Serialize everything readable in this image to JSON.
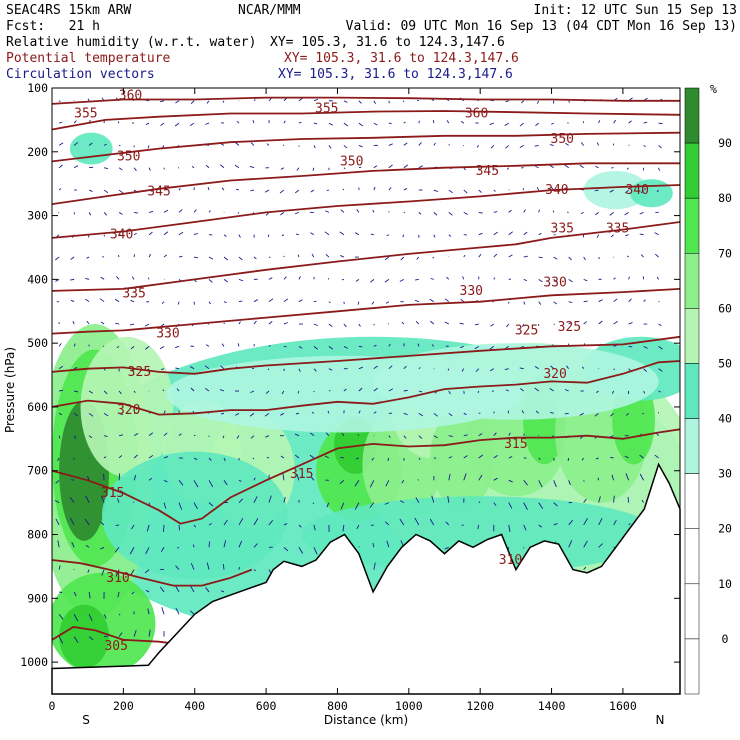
{
  "header": {
    "model": "SEAC4RS 15km ARW",
    "org": "NCAR/MMM",
    "init": "Init: 12 UTC Sun 15 Sep 13",
    "fcst": "Fcst:   21 h",
    "valid": "Valid: 09 UTC Mon 16 Sep 13 (04 CDT Mon 16 Sep 13)",
    "fields": [
      {
        "name": "Relative humidity (w.r.t. water)",
        "xy": "XY= 105.3, 31.6 to 124.3,147.6",
        "color": "#000000"
      },
      {
        "name": "Potential temperature",
        "xy": "XY= 105.3, 31.6 to 124.3,147.6",
        "color": "#8b1a1a"
      },
      {
        "name": "Circulation vectors",
        "xy": "XY= 105.3, 31.6 to 124.3,147.6",
        "color": "#1a1a8b"
      }
    ]
  },
  "chart_data": {
    "type": "heatmap",
    "xlabel": "Distance (km)",
    "ylabel": "Pressure (hPa)",
    "xlim": [
      0,
      1760
    ],
    "ylim": [
      1050,
      100
    ],
    "x_ticks": [
      0,
      200,
      400,
      600,
      800,
      1000,
      1200,
      1400,
      1600
    ],
    "y_ticks": [
      100,
      200,
      300,
      400,
      500,
      600,
      700,
      800,
      900,
      1000
    ],
    "x_end_labels": {
      "left": "S",
      "right": "N"
    },
    "colorbar": {
      "unit": "%",
      "ticks": [
        90,
        80,
        70,
        60,
        50,
        40,
        30,
        20,
        10,
        0
      ],
      "bands": [
        {
          "range": [
            90,
            100
          ],
          "color": "#2e8b2e"
        },
        {
          "range": [
            80,
            90
          ],
          "color": "#32cd32"
        },
        {
          "range": [
            70,
            80
          ],
          "color": "#50e650"
        },
        {
          "range": [
            60,
            70
          ],
          "color": "#8cef8c"
        },
        {
          "range": [
            50,
            60
          ],
          "color": "#b4f5b4"
        },
        {
          "range": [
            40,
            50
          ],
          "color": "#5fe8be"
        },
        {
          "range": [
            30,
            40
          ],
          "color": "#aef5e0"
        },
        {
          "range": [
            20,
            30
          ],
          "color": "#ffffff"
        },
        {
          "range": [
            10,
            20
          ],
          "color": "#ffffff"
        },
        {
          "range": [
            0,
            10
          ],
          "color": "#ffffff"
        },
        {
          "range": [
            -10,
            0
          ],
          "color": "#ffffff"
        }
      ]
    },
    "theta_contours": [
      {
        "label": "305",
        "points": [
          [
            0,
            965
          ],
          [
            60,
            945
          ],
          [
            120,
            950
          ],
          [
            200,
            965
          ],
          [
            300,
            968
          ],
          [
            400,
            975
          ]
        ]
      },
      {
        "label": "310",
        "points": [
          [
            0,
            840
          ],
          [
            80,
            845
          ],
          [
            160,
            855
          ],
          [
            250,
            868
          ],
          [
            340,
            880
          ],
          [
            420,
            880
          ],
          [
            500,
            868
          ],
          [
            560,
            855
          ]
        ]
      },
      {
        "label": "315",
        "points": [
          [
            0,
            700
          ],
          [
            100,
            715
          ],
          [
            200,
            735
          ],
          [
            300,
            762
          ],
          [
            360,
            783
          ],
          [
            420,
            775
          ],
          [
            500,
            742
          ],
          [
            600,
            715
          ],
          [
            700,
            690
          ],
          [
            800,
            665
          ],
          [
            900,
            658
          ],
          [
            1000,
            662
          ],
          [
            1100,
            660
          ],
          [
            1200,
            652
          ],
          [
            1300,
            648
          ],
          [
            1400,
            648
          ],
          [
            1500,
            645
          ],
          [
            1600,
            650
          ],
          [
            1700,
            640
          ],
          [
            1760,
            635
          ]
        ]
      },
      {
        "label": "320",
        "points": [
          [
            0,
            600
          ],
          [
            100,
            590
          ],
          [
            200,
            595
          ],
          [
            300,
            612
          ],
          [
            400,
            610
          ],
          [
            500,
            605
          ],
          [
            600,
            605
          ],
          [
            700,
            598
          ],
          [
            800,
            592
          ],
          [
            900,
            595
          ],
          [
            1000,
            585
          ],
          [
            1100,
            572
          ],
          [
            1200,
            568
          ],
          [
            1300,
            565
          ],
          [
            1400,
            560
          ],
          [
            1500,
            562
          ],
          [
            1600,
            548
          ],
          [
            1700,
            530
          ],
          [
            1760,
            528
          ]
        ]
      },
      {
        "label": "325",
        "points": [
          [
            0,
            545
          ],
          [
            100,
            540
          ],
          [
            200,
            538
          ],
          [
            300,
            545
          ],
          [
            400,
            548
          ],
          [
            500,
            540
          ],
          [
            600,
            535
          ],
          [
            800,
            528
          ],
          [
            1000,
            520
          ],
          [
            1200,
            512
          ],
          [
            1400,
            505
          ],
          [
            1600,
            502
          ],
          [
            1760,
            490
          ]
        ]
      },
      {
        "label": "330",
        "points": [
          [
            0,
            485
          ],
          [
            100,
            482
          ],
          [
            200,
            480
          ],
          [
            400,
            470
          ],
          [
            600,
            460
          ],
          [
            800,
            450
          ],
          [
            1000,
            440
          ],
          [
            1200,
            435
          ],
          [
            1300,
            430
          ],
          [
            1400,
            425
          ],
          [
            1600,
            420
          ],
          [
            1760,
            415
          ]
        ]
      },
      {
        "label": "335",
        "points": [
          [
            0,
            418
          ],
          [
            200,
            415
          ],
          [
            400,
            400
          ],
          [
            600,
            385
          ],
          [
            800,
            372
          ],
          [
            1000,
            360
          ],
          [
            1200,
            350
          ],
          [
            1300,
            345
          ],
          [
            1400,
            335
          ],
          [
            1600,
            322
          ],
          [
            1760,
            310
          ]
        ]
      },
      {
        "label": "340",
        "points": [
          [
            0,
            335
          ],
          [
            200,
            325
          ],
          [
            400,
            310
          ],
          [
            600,
            295
          ],
          [
            800,
            285
          ],
          [
            1000,
            278
          ],
          [
            1200,
            270
          ],
          [
            1400,
            260
          ],
          [
            1600,
            255
          ],
          [
            1760,
            252
          ]
        ]
      },
      {
        "label": "345",
        "points": [
          [
            0,
            282
          ],
          [
            150,
            270
          ],
          [
            300,
            258
          ],
          [
            500,
            245
          ],
          [
            700,
            238
          ],
          [
            900,
            230
          ],
          [
            1100,
            225
          ],
          [
            1300,
            222
          ],
          [
            1500,
            218
          ],
          [
            1760,
            218
          ]
        ]
      },
      {
        "label": "350",
        "points": [
          [
            0,
            215
          ],
          [
            150,
            205
          ],
          [
            300,
            195
          ],
          [
            500,
            185
          ],
          [
            700,
            180
          ],
          [
            900,
            178
          ],
          [
            1100,
            175
          ],
          [
            1300,
            175
          ],
          [
            1500,
            172
          ],
          [
            1760,
            170
          ]
        ]
      },
      {
        "label": "355",
        "points": [
          [
            0,
            165
          ],
          [
            150,
            150
          ],
          [
            300,
            145
          ],
          [
            500,
            140
          ],
          [
            700,
            140
          ],
          [
            900,
            137
          ],
          [
            1100,
            136
          ],
          [
            1300,
            138
          ],
          [
            1500,
            140
          ],
          [
            1760,
            142
          ]
        ]
      },
      {
        "label": "360",
        "points": [
          [
            0,
            125
          ],
          [
            200,
            118
          ],
          [
            400,
            118
          ],
          [
            600,
            115
          ],
          [
            800,
            115
          ],
          [
            1000,
            116
          ],
          [
            1200,
            118
          ],
          [
            1400,
            118
          ],
          [
            1600,
            120
          ],
          [
            1760,
            120
          ]
        ]
      }
    ],
    "contour_labels": [
      {
        "text": "360",
        "x": 220,
        "p": 112
      },
      {
        "text": "355",
        "x": 95,
        "p": 140
      },
      {
        "text": "355",
        "x": 770,
        "p": 132
      },
      {
        "text": "360",
        "x": 1190,
        "p": 140
      },
      {
        "text": "350",
        "x": 215,
        "p": 207
      },
      {
        "text": "350",
        "x": 840,
        "p": 215
      },
      {
        "text": "350",
        "x": 1430,
        "p": 180
      },
      {
        "text": "345",
        "x": 300,
        "p": 262
      },
      {
        "text": "345",
        "x": 1220,
        "p": 230
      },
      {
        "text": "340",
        "x": 1415,
        "p": 260
      },
      {
        "text": "340",
        "x": 1640,
        "p": 260
      },
      {
        "text": "340",
        "x": 195,
        "p": 330
      },
      {
        "text": "335",
        "x": 1430,
        "p": 320
      },
      {
        "text": "335",
        "x": 1585,
        "p": 320
      },
      {
        "text": "335",
        "x": 230,
        "p": 422
      },
      {
        "text": "330",
        "x": 1175,
        "p": 418
      },
      {
        "text": "330",
        "x": 1410,
        "p": 405
      },
      {
        "text": "330",
        "x": 325,
        "p": 485
      },
      {
        "text": "325",
        "x": 1330,
        "p": 480
      },
      {
        "text": "325",
        "x": 1450,
        "p": 475
      },
      {
        "text": "325",
        "x": 245,
        "p": 545
      },
      {
        "text": "320",
        "x": 1410,
        "p": 548
      },
      {
        "text": "320",
        "x": 215,
        "p": 605
      },
      {
        "text": "315",
        "x": 1300,
        "p": 658
      },
      {
        "text": "315",
        "x": 700,
        "p": 705
      },
      {
        "text": "315",
        "x": 170,
        "p": 735
      },
      {
        "text": "310",
        "x": 1285,
        "p": 840
      },
      {
        "text": "310",
        "x": 185,
        "p": 868
      },
      {
        "text": "305",
        "x": 180,
        "p": 975
      }
    ],
    "terrain": {
      "fill": "#ffffff",
      "points": [
        [
          0,
          1010
        ],
        [
          270,
          1005
        ],
        [
          300,
          985
        ],
        [
          350,
          955
        ],
        [
          400,
          925
        ],
        [
          450,
          905
        ],
        [
          500,
          895
        ],
        [
          550,
          885
        ],
        [
          600,
          875
        ],
        [
          620,
          855
        ],
        [
          650,
          842
        ],
        [
          700,
          850
        ],
        [
          740,
          840
        ],
        [
          780,
          812
        ],
        [
          820,
          800
        ],
        [
          860,
          830
        ],
        [
          900,
          890
        ],
        [
          940,
          850
        ],
        [
          980,
          820
        ],
        [
          1020,
          800
        ],
        [
          1060,
          810
        ],
        [
          1100,
          830
        ],
        [
          1140,
          810
        ],
        [
          1180,
          820
        ],
        [
          1220,
          808
        ],
        [
          1260,
          800
        ],
        [
          1300,
          855
        ],
        [
          1340,
          820
        ],
        [
          1380,
          810
        ],
        [
          1420,
          815
        ],
        [
          1460,
          855
        ],
        [
          1500,
          860
        ],
        [
          1540,
          850
        ],
        [
          1580,
          820
        ],
        [
          1620,
          790
        ],
        [
          1660,
          760
        ],
        [
          1700,
          690
        ],
        [
          1730,
          720
        ],
        [
          1760,
          760
        ],
        [
          1760,
          1050
        ],
        [
          0,
          1050
        ]
      ]
    },
    "vectors_note": "wind vector field"
  }
}
